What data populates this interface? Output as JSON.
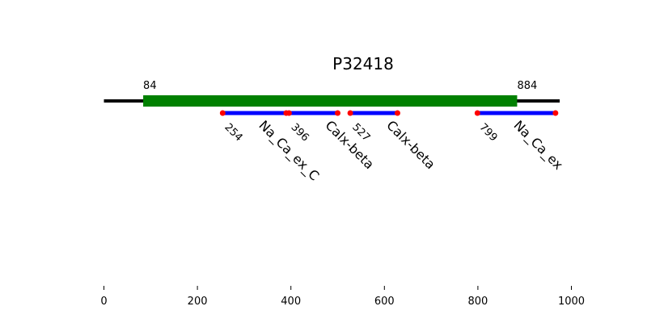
{
  "chart_data": {
    "type": "domain-map",
    "title": "P32418",
    "xlim": [
      0,
      1000
    ],
    "x_ticks": [
      0,
      200,
      400,
      600,
      800,
      1000
    ],
    "backbone": {
      "start": 0,
      "end": 975,
      "color": "#000000"
    },
    "region": {
      "start": 84,
      "end": 884,
      "color": "#008000",
      "start_label": "84",
      "end_label": "884"
    },
    "domains": [
      {
        "name": "Na_Ca_ex_C",
        "start": 254,
        "end": 390,
        "start_label": "254"
      },
      {
        "name": "Calx-beta",
        "start": 396,
        "end": 500,
        "start_label": "396"
      },
      {
        "name": "Calx-beta",
        "start": 527,
        "end": 628,
        "start_label": "527"
      },
      {
        "name": "Na_Ca_ex",
        "start": 799,
        "end": 966,
        "start_label": "799"
      }
    ],
    "domain_color": "#0000ff",
    "endpoint_color": "#ff0000"
  }
}
